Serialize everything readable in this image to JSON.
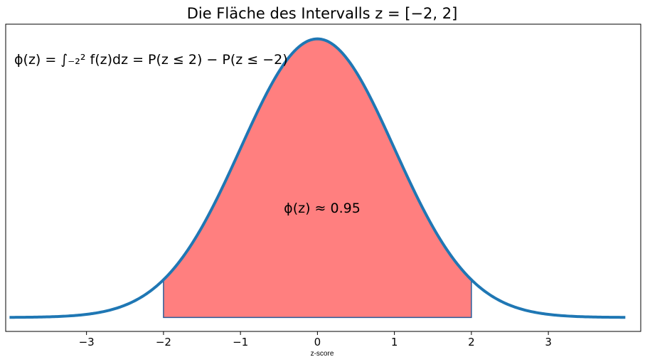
{
  "chart_data": {
    "type": "area",
    "title": "Die Fläche des Intervalls z = [−2, 2]",
    "xlabel": "z-score",
    "ylabel": "",
    "xlim": [
      -4.05,
      4.2
    ],
    "ylim": [
      -0.02,
      0.42
    ],
    "x_ticks": [
      -3,
      -2,
      -1,
      0,
      1,
      2,
      3
    ],
    "x_tick_labels": [
      "−3",
      "−2",
      "−1",
      "0",
      "1",
      "2",
      "3"
    ],
    "grid": false,
    "series": [
      {
        "kind": "line",
        "function": "standard-normal-pdf",
        "x_range": [
          -4,
          4
        ],
        "color": "#1f77b4"
      }
    ],
    "shaded_interval": {
      "x_from": -2,
      "x_to": 2,
      "color": "#ff7f7f"
    },
    "annotations": {
      "formula": "ϕ(z) = ∫₋₂² f(z)dz = P(z ≤ 2) − P(z ≤ −2)",
      "area_label": "ϕ(z) ≈ 0.95"
    }
  }
}
